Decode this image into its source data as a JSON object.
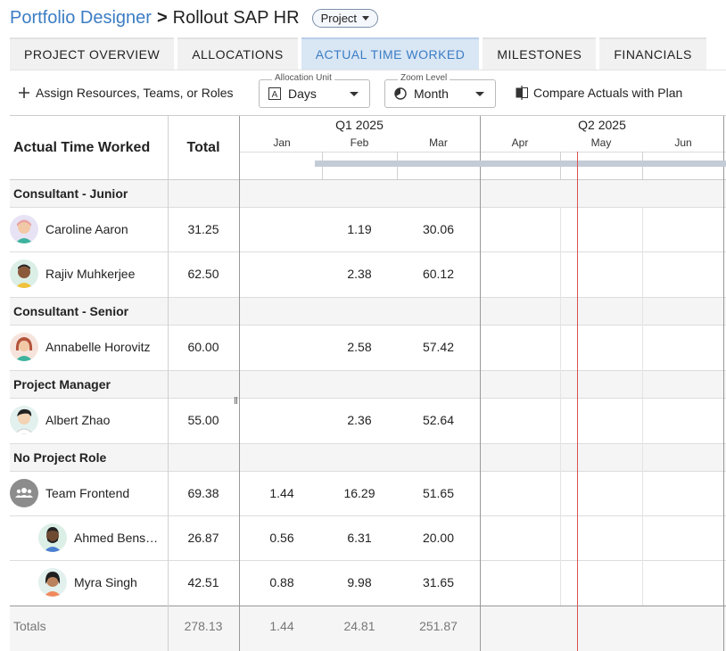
{
  "breadcrumb": {
    "root": "Portfolio Designer",
    "separator": ">",
    "title": "Rollout SAP HR",
    "type_badge": "Project"
  },
  "tabs": [
    {
      "label": "PROJECT OVERVIEW"
    },
    {
      "label": "ALLOCATIONS"
    },
    {
      "label": "ACTUAL TIME WORKED",
      "active": true
    },
    {
      "label": "MILESTONES"
    },
    {
      "label": "FINANCIALS"
    }
  ],
  "toolbar": {
    "assign_label": "Assign Resources, Teams, or Roles",
    "allocation_unit": {
      "label": "Allocation Unit",
      "value": "Days"
    },
    "zoom_level": {
      "label": "Zoom Level",
      "value": "Month"
    },
    "compare_label": "Compare Actuals with Plan"
  },
  "table": {
    "header_label": "Actual Time Worked",
    "total_label": "Total",
    "quarters": [
      "Q1 2025",
      "Q2 2025"
    ],
    "months": [
      "Jan",
      "Feb",
      "Mar",
      "Apr",
      "May",
      "Jun"
    ],
    "groups": [
      {
        "role": "Consultant - Junior",
        "people": [
          {
            "name": "Caroline Aaron",
            "total": "31.25",
            "jan": "",
            "feb": "1.19",
            "mar": "30.06"
          },
          {
            "name": "Rajiv Muhkerjee",
            "total": "62.50",
            "jan": "",
            "feb": "2.38",
            "mar": "60.12"
          }
        ]
      },
      {
        "role": "Consultant - Senior",
        "people": [
          {
            "name": "Annabelle Horovitz",
            "total": "60.00",
            "jan": "",
            "feb": "2.58",
            "mar": "57.42"
          }
        ]
      },
      {
        "role": "Project Manager",
        "people": [
          {
            "name": "Albert Zhao",
            "total": "55.00",
            "jan": "",
            "feb": "2.36",
            "mar": "52.64"
          }
        ]
      },
      {
        "role": "No Project Role",
        "people": [
          {
            "name": "Team Frontend",
            "total": "69.38",
            "jan": "1.44",
            "feb": "16.29",
            "mar": "51.65"
          },
          {
            "name": "Ahmed Bens…",
            "total": "26.87",
            "jan": "0.56",
            "feb": "6.31",
            "mar": "20.00"
          },
          {
            "name": "Myra Singh",
            "total": "42.51",
            "jan": "0.88",
            "feb": "9.98",
            "mar": "31.65"
          }
        ]
      }
    ],
    "totals": {
      "label": "Totals",
      "total": "278.13",
      "jan": "1.44",
      "feb": "24.81",
      "mar": "251.87"
    }
  },
  "colors": {
    "link": "#3b7dc4",
    "active_tab_bg": "#d9e6f4",
    "today_line": "#d9534f",
    "timeline_bar": "#c3cbd6"
  }
}
